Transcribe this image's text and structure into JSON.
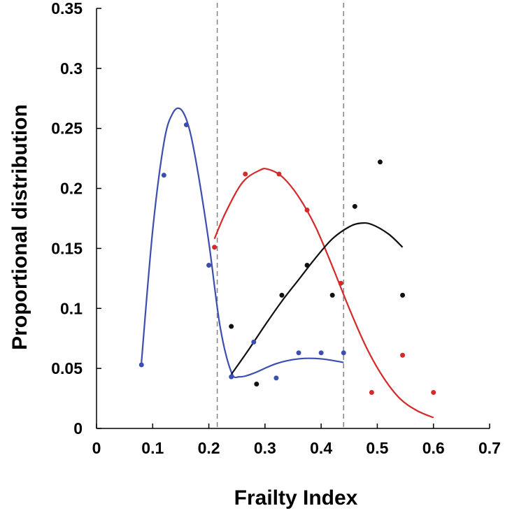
{
  "chart_data": {
    "type": "scatter",
    "xlabel": "Frailty Index",
    "ylabel": "Proportional distribution",
    "xlim": [
      0,
      0.7
    ],
    "ylim": [
      0,
      0.35
    ],
    "xticks": [
      0,
      0.1,
      0.2,
      0.3,
      0.4,
      0.5,
      0.6,
      0.7
    ],
    "xtick_labels": [
      "0",
      "0.1",
      "0.2",
      "0.3",
      "0.4",
      "0.5",
      "0.6",
      "0.7"
    ],
    "yticks": [
      0,
      0.05,
      0.1,
      0.15,
      0.2,
      0.25,
      0.3,
      0.35
    ],
    "ytick_labels": [
      "0",
      "0.05",
      "0.1",
      "0.15",
      "0.2",
      "0.25",
      "0.3",
      "0.35"
    ],
    "grid": false,
    "vlines": [
      0.215,
      0.44
    ],
    "series": [
      {
        "color": "#3c4fb0",
        "points": [
          [
            0.08,
            0.053
          ],
          [
            0.12,
            0.211
          ],
          [
            0.16,
            0.253
          ],
          [
            0.2,
            0.136
          ],
          [
            0.24,
            0.043
          ],
          [
            0.28,
            0.072
          ],
          [
            0.32,
            0.042
          ],
          [
            0.36,
            0.063
          ],
          [
            0.4,
            0.063
          ],
          [
            0.44,
            0.063
          ]
        ],
        "curve": [
          [
            0.08,
            0.055
          ],
          [
            0.1,
            0.165
          ],
          [
            0.12,
            0.238
          ],
          [
            0.135,
            0.262
          ],
          [
            0.15,
            0.266
          ],
          [
            0.165,
            0.25
          ],
          [
            0.18,
            0.215
          ],
          [
            0.2,
            0.155
          ],
          [
            0.22,
            0.085
          ],
          [
            0.24,
            0.047
          ],
          [
            0.255,
            0.043
          ],
          [
            0.28,
            0.046
          ],
          [
            0.32,
            0.054
          ],
          [
            0.36,
            0.058
          ],
          [
            0.4,
            0.058
          ],
          [
            0.44,
            0.055
          ]
        ]
      },
      {
        "color": "#d42a2a",
        "points": [
          [
            0.21,
            0.151
          ],
          [
            0.265,
            0.212
          ],
          [
            0.325,
            0.212
          ],
          [
            0.375,
            0.182
          ],
          [
            0.435,
            0.121
          ],
          [
            0.49,
            0.03
          ],
          [
            0.545,
            0.061
          ],
          [
            0.6,
            0.03
          ]
        ],
        "curve": [
          [
            0.21,
            0.158
          ],
          [
            0.23,
            0.18
          ],
          [
            0.26,
            0.205
          ],
          [
            0.29,
            0.215
          ],
          [
            0.305,
            0.216
          ],
          [
            0.33,
            0.21
          ],
          [
            0.36,
            0.193
          ],
          [
            0.39,
            0.168
          ],
          [
            0.42,
            0.135
          ],
          [
            0.45,
            0.1
          ],
          [
            0.48,
            0.068
          ],
          [
            0.51,
            0.043
          ],
          [
            0.54,
            0.025
          ],
          [
            0.57,
            0.015
          ],
          [
            0.6,
            0.009
          ]
        ]
      },
      {
        "color": "#111111",
        "points": [
          [
            0.24,
            0.085
          ],
          [
            0.285,
            0.037
          ],
          [
            0.33,
            0.111
          ],
          [
            0.375,
            0.136
          ],
          [
            0.42,
            0.111
          ],
          [
            0.46,
            0.185
          ],
          [
            0.505,
            0.222
          ],
          [
            0.545,
            0.111
          ]
        ],
        "curve": [
          [
            0.24,
            0.045
          ],
          [
            0.27,
            0.065
          ],
          [
            0.3,
            0.086
          ],
          [
            0.33,
            0.106
          ],
          [
            0.36,
            0.124
          ],
          [
            0.39,
            0.142
          ],
          [
            0.42,
            0.158
          ],
          [
            0.45,
            0.168
          ],
          [
            0.47,
            0.171
          ],
          [
            0.49,
            0.17
          ],
          [
            0.52,
            0.162
          ],
          [
            0.545,
            0.151
          ]
        ]
      }
    ]
  }
}
